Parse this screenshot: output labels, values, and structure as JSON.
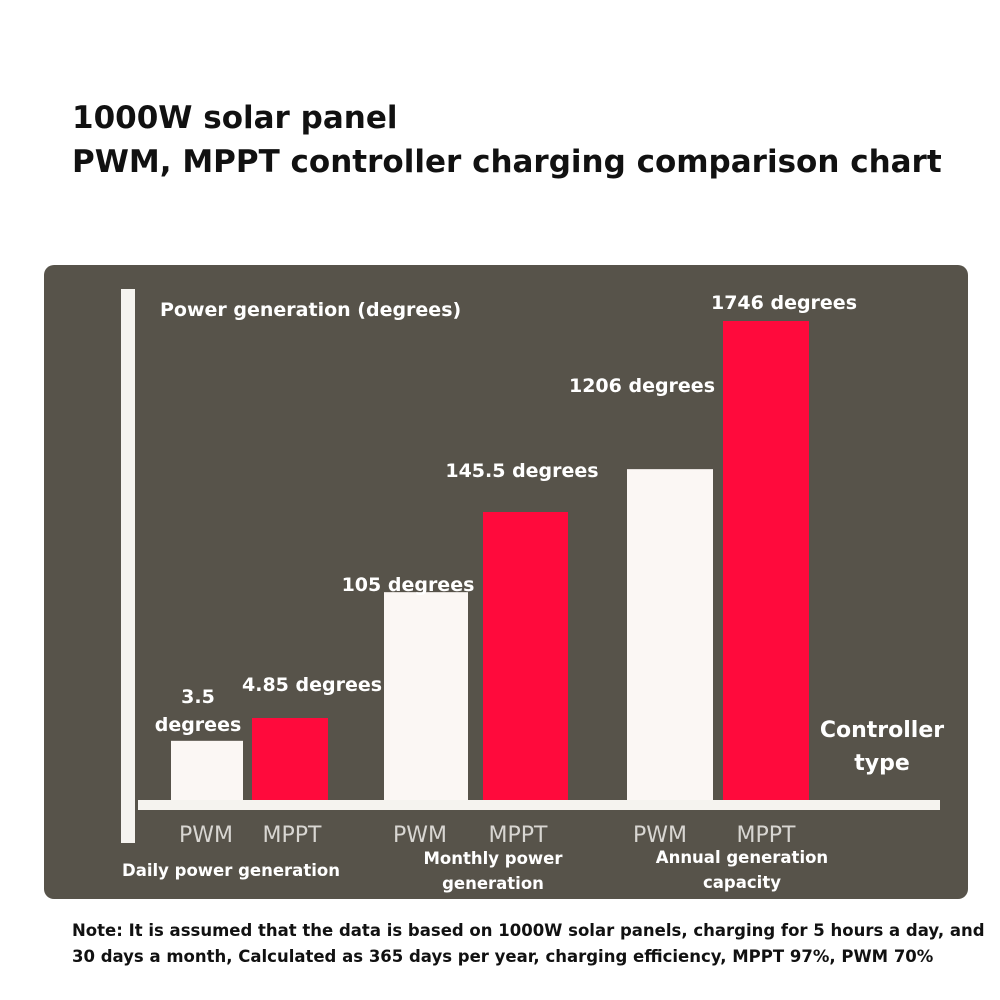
{
  "title_lines": [
    "1000W solar panel",
    "PWM, MPPT controller charging comparison chart"
  ],
  "note_lines": [
    "Note: It is assumed that the data is based on 1000W solar panels, charging for 5 hours a day, and",
    "30 days a month, Calculated as 365 days per year, charging efficiency, MPPT 97%, PWM 70%"
  ],
  "colors": {
    "panel": "#57534a",
    "pwm": "#fbf7f4",
    "mppt": "#ff0a3c",
    "axis": "#f5f3ef",
    "text": "#ffffff",
    "tick": "#d8d6d2"
  },
  "chart_data": {
    "type": "bar",
    "title": "1000W solar panel PWM, MPPT controller charging comparison chart",
    "ylabel": "Power generation (degrees)",
    "xlabel_lines": [
      "Controller",
      "type"
    ],
    "ylim": [
      0,
      1900
    ],
    "scale_note": "bars within each group drawn to an independent visual scale",
    "groups": [
      {
        "label_lines": [
          "Daily power generation"
        ],
        "bars": [
          {
            "series": "PWM",
            "value": 3.5,
            "label_lines": [
              "3.5",
              "degrees"
            ]
          },
          {
            "series": "MPPT",
            "value": 4.85,
            "label_lines": [
              "4.85 degrees"
            ]
          }
        ]
      },
      {
        "label_lines": [
          "Monthly power",
          "generation"
        ],
        "bars": [
          {
            "series": "PWM",
            "value": 105,
            "label_lines": [
              "105 degrees"
            ]
          },
          {
            "series": "MPPT",
            "value": 145.5,
            "label_lines": [
              "145.5 degrees"
            ]
          }
        ]
      },
      {
        "label_lines": [
          "Annual generation",
          "capacity"
        ],
        "bars": [
          {
            "series": "PWM",
            "value": 1206,
            "label_lines": [
              "1206 degrees"
            ]
          },
          {
            "series": "MPPT",
            "value": 1746,
            "label_lines": [
              "1746 degrees"
            ]
          }
        ]
      }
    ]
  }
}
